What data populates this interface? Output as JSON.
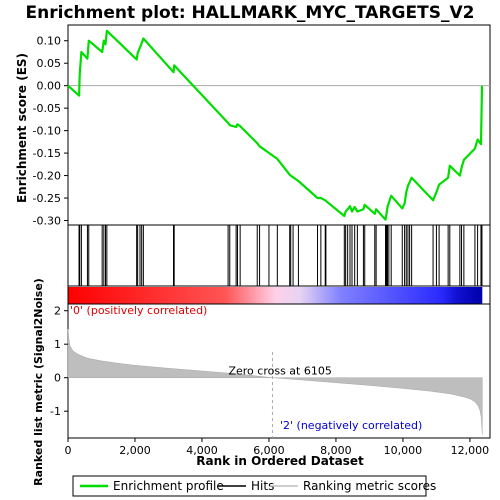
{
  "chart_data": {
    "type": "line",
    "title": "Enrichment plot: HALLMARK_MYC_TARGETS_V2",
    "es_panel": {
      "ylabel": "Enrichment score (ES)",
      "ylim": [
        -0.31,
        0.135
      ],
      "yticks": [
        "0.10",
        "0.05",
        "0.00",
        "-0.05",
        "-0.10",
        "-0.15",
        "-0.20",
        "-0.25",
        "-0.30"
      ],
      "ytick_values": [
        0.1,
        0.05,
        0.0,
        -0.05,
        -0.1,
        -0.15,
        -0.2,
        -0.25,
        -0.3
      ],
      "series": [
        {
          "name": "Enrichment profile",
          "color": "#00dd00",
          "x": [
            0,
            330,
            350,
            400,
            580,
            620,
            1020,
            1070,
            1120,
            1160,
            2050,
            2080,
            2150,
            2200,
            2250,
            3150,
            3170,
            4780,
            4830,
            5020,
            5060,
            5140,
            5650,
            5720,
            6250,
            6620,
            6650,
            6880,
            7450,
            7550,
            7680,
            8250,
            8290,
            8350,
            8420,
            8480,
            8560,
            8640,
            8820,
            8860,
            9160,
            9200,
            9480,
            9510,
            9540,
            9580,
            9650,
            9980,
            10050,
            10100,
            10150,
            10200,
            10260,
            10900,
            11000,
            11080,
            11350,
            11400,
            11700,
            11750,
            11820,
            12150,
            12230,
            12330,
            12360
          ],
          "y": [
            0.0,
            -0.022,
            0.025,
            0.075,
            0.06,
            0.1,
            0.075,
            0.1,
            0.092,
            0.122,
            0.058,
            0.073,
            0.085,
            0.095,
            0.105,
            0.03,
            0.045,
            -0.083,
            -0.088,
            -0.092,
            -0.086,
            -0.09,
            -0.128,
            -0.135,
            -0.163,
            -0.198,
            -0.2,
            -0.212,
            -0.25,
            -0.25,
            -0.255,
            -0.29,
            -0.28,
            -0.275,
            -0.268,
            -0.28,
            -0.27,
            -0.28,
            -0.275,
            -0.265,
            -0.285,
            -0.275,
            -0.298,
            -0.285,
            -0.27,
            -0.26,
            -0.245,
            -0.273,
            -0.262,
            -0.237,
            -0.223,
            -0.215,
            -0.205,
            -0.255,
            -0.237,
            -0.22,
            -0.205,
            -0.178,
            -0.2,
            -0.183,
            -0.165,
            -0.14,
            -0.12,
            -0.13,
            0.0
          ]
        }
      ]
    },
    "hits": {
      "name": "Hits",
      "color": "#000000",
      "positions": [
        330,
        350,
        400,
        580,
        620,
        1020,
        1070,
        1120,
        1160,
        2050,
        2080,
        2150,
        2200,
        2250,
        3150,
        3170,
        4780,
        4830,
        5020,
        5060,
        5140,
        5650,
        5720,
        6000,
        6250,
        6620,
        6650,
        6720,
        6880,
        7450,
        7550,
        7680,
        7700,
        8250,
        8290,
        8350,
        8420,
        8480,
        8560,
        8640,
        8820,
        8860,
        9160,
        9200,
        9480,
        9510,
        9540,
        9580,
        9650,
        9980,
        10050,
        10100,
        10150,
        10200,
        10260,
        10900,
        11000,
        11080,
        11350,
        11400,
        11700,
        11750,
        11820,
        12150,
        12230,
        12330,
        12360
      ]
    },
    "ranked_metric_panel": {
      "name": "Ranking metric scores",
      "color": "#bebebe",
      "ylabel": "Ranked list metric (Signal2Noise)",
      "ylim": [
        -1.8,
        2.2
      ],
      "yticks": [
        "2",
        "1",
        "0",
        "-1"
      ],
      "ytick_values": [
        2,
        1,
        0,
        -1
      ],
      "x": [
        0,
        20,
        60,
        150,
        300,
        600,
        1000,
        1500,
        2000,
        3000,
        4000,
        5000,
        6105,
        7000,
        8000,
        9000,
        10000,
        10800,
        11400,
        11800,
        12000,
        12150,
        12250,
        12300,
        12340,
        12370
      ],
      "y": [
        1.45,
        1.2,
        0.95,
        0.8,
        0.7,
        0.58,
        0.5,
        0.43,
        0.37,
        0.28,
        0.2,
        0.12,
        0.0,
        -0.07,
        -0.15,
        -0.23,
        -0.32,
        -0.4,
        -0.48,
        -0.57,
        -0.63,
        -0.72,
        -0.85,
        -0.98,
        -1.2,
        -1.7
      ],
      "zero_cross_label": "Zero cross at 6105",
      "zero_cross": 6105,
      "pos_label": "'0' (positively correlated)",
      "neg_label": "'2' (negatively correlated)"
    },
    "xlabel": "Rank in Ordered Dataset",
    "xlim": [
      0,
      12600
    ],
    "xticks": [
      "0",
      "2,000",
      "4,000",
      "6,000",
      "8,000",
      "10,000",
      "12,000"
    ],
    "xtick_values": [
      0,
      2000,
      4000,
      6000,
      8000,
      10000,
      12000
    ],
    "colors": {
      "profile": "#00dd00",
      "hits": "#000000",
      "metric": "#bebebe",
      "positive": "#ff0000",
      "negative": "#0000ff",
      "pos_text": "#dd0000",
      "neg_text": "#0000cc"
    },
    "legend": {
      "placement": "bottom",
      "items": [
        {
          "label": "Enrichment profile",
          "color": "#00dd00"
        },
        {
          "label": "Hits",
          "color": "#000000"
        },
        {
          "label": "Ranking metric scores",
          "color": "#bebebe"
        }
      ]
    }
  }
}
